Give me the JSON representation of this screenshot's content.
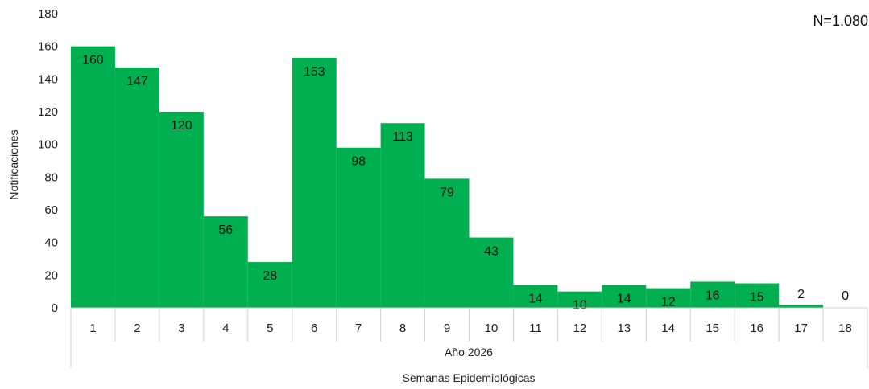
{
  "chart_data": {
    "type": "bar",
    "note": "N=1.080",
    "ylabel": "Notificaciones",
    "xgroup_label": "Año 2026",
    "xlabel": "Semanas Epidemiológicas",
    "categories": [
      "1",
      "2",
      "3",
      "4",
      "5",
      "6",
      "7",
      "8",
      "9",
      "10",
      "11",
      "12",
      "13",
      "14",
      "15",
      "16",
      "17",
      "18"
    ],
    "values": [
      160,
      147,
      120,
      56,
      28,
      153,
      98,
      113,
      79,
      43,
      14,
      10,
      14,
      12,
      16,
      15,
      2,
      0
    ],
    "ylim": [
      0,
      180
    ],
    "yticks": [
      0,
      20,
      40,
      60,
      80,
      100,
      120,
      140,
      160,
      180
    ],
    "bar_color": "#00b050",
    "grid": false
  }
}
